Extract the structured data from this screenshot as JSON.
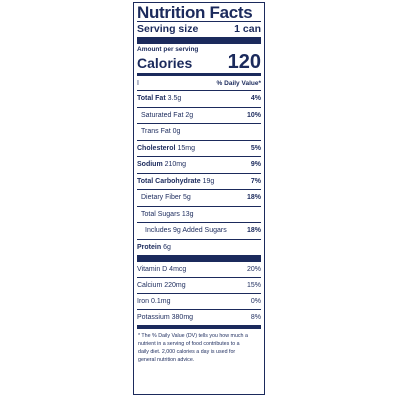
{
  "label": {
    "title": "Nutrition Facts",
    "serving_size_label": "Serving size",
    "serving_size_value": "1 can",
    "amount_per_serving": "Amount per serving",
    "calories_label": "Calories",
    "calories_value": "120",
    "dv_tick": "I",
    "dv_header": "% Daily Value*",
    "nutrients": [
      {
        "name": "Total Fat",
        "amount": "3.5g",
        "dv": "4%"
      },
      {
        "name": "Saturated Fat",
        "amount": "2g",
        "dv": "10%"
      },
      {
        "name": "Trans Fat",
        "amount": "0g",
        "dv": ""
      },
      {
        "name": "Cholesterol",
        "amount": "15mg",
        "dv": "5%"
      },
      {
        "name": "Sodium",
        "amount": "210mg",
        "dv": "9%"
      },
      {
        "name": "Total Carbohydrate",
        "amount": "19g",
        "dv": "7%"
      },
      {
        "name": "Dietary Fiber",
        "amount": "5g",
        "dv": "18%"
      },
      {
        "name": "Total Sugars",
        "amount": "13g",
        "dv": ""
      },
      {
        "name": "Includes 9g Added Sugars",
        "amount": "",
        "dv": "18%"
      },
      {
        "name": "Protein",
        "amount": "6g",
        "dv": ""
      }
    ],
    "minerals": [
      {
        "name": "Vitamin D",
        "amount": "4mcg",
        "dv": "20%"
      },
      {
        "name": "Calcium",
        "amount": "220mg",
        "dv": "15%"
      },
      {
        "name": "Iron",
        "amount": "0.1mg",
        "dv": "0%"
      },
      {
        "name": "Potassium",
        "amount": "380mg",
        "dv": "8%"
      }
    ],
    "footnote": [
      "* The % Daily Value (DV) tells you how much a",
      "nutrient in a serving of food contributes to a",
      "daily diet. 2,000 calories a day is used for",
      "general nutrition advice."
    ]
  }
}
